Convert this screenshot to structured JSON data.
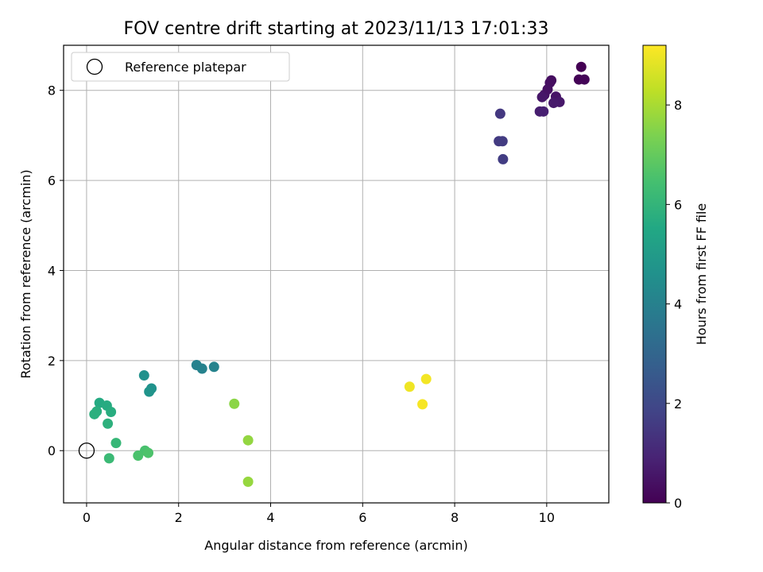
{
  "chart_data": {
    "type": "scatter",
    "title": "FOV centre drift starting at 2023/11/13 17:01:33",
    "xlabel": "Angular distance from reference (arcmin)",
    "ylabel": "Rotation from reference (arcmin)",
    "xlim": [
      -0.5,
      11.35
    ],
    "ylim": [
      -1.16,
      9.0
    ],
    "xticks": [
      0,
      2,
      4,
      6,
      8,
      10
    ],
    "yticks": [
      0,
      2,
      4,
      6,
      8
    ],
    "grid": true,
    "legend": {
      "position": "top-left",
      "entries": [
        "Reference platepar"
      ]
    },
    "reference_point": {
      "x": 0,
      "y": 0
    },
    "colorbar": {
      "label": "Hours from first FF file",
      "range": [
        0,
        9.2
      ],
      "ticks": [
        0,
        2,
        4,
        6,
        8
      ],
      "colormap": "viridis"
    },
    "points": [
      {
        "x": 10.75,
        "y": 8.52,
        "c": 0.0
      },
      {
        "x": 10.7,
        "y": 8.24,
        "c": 0.05
      },
      {
        "x": 10.82,
        "y": 8.24,
        "c": 0.1
      },
      {
        "x": 10.1,
        "y": 8.22,
        "c": 0.3
      },
      {
        "x": 10.07,
        "y": 8.17,
        "c": 0.35
      },
      {
        "x": 10.02,
        "y": 8.02,
        "c": 0.4
      },
      {
        "x": 9.95,
        "y": 7.9,
        "c": 0.45
      },
      {
        "x": 10.2,
        "y": 7.86,
        "c": 0.5
      },
      {
        "x": 9.9,
        "y": 7.85,
        "c": 0.55
      },
      {
        "x": 10.28,
        "y": 7.74,
        "c": 0.6
      },
      {
        "x": 10.15,
        "y": 7.72,
        "c": 0.65
      },
      {
        "x": 9.85,
        "y": 7.53,
        "c": 0.75
      },
      {
        "x": 9.93,
        "y": 7.53,
        "c": 0.8
      },
      {
        "x": 8.99,
        "y": 7.48,
        "c": 1.5
      },
      {
        "x": 8.96,
        "y": 6.87,
        "c": 1.55
      },
      {
        "x": 9.04,
        "y": 6.87,
        "c": 1.6
      },
      {
        "x": 9.05,
        "y": 6.47,
        "c": 1.65
      },
      {
        "x": 2.39,
        "y": 1.9,
        "c": 4.0
      },
      {
        "x": 2.51,
        "y": 1.82,
        "c": 4.05
      },
      {
        "x": 2.77,
        "y": 1.86,
        "c": 4.1
      },
      {
        "x": 1.25,
        "y": 1.67,
        "c": 4.6
      },
      {
        "x": 1.41,
        "y": 1.38,
        "c": 4.65
      },
      {
        "x": 1.36,
        "y": 1.31,
        "c": 4.7
      },
      {
        "x": 0.28,
        "y": 1.06,
        "c": 5.6
      },
      {
        "x": 0.44,
        "y": 1.0,
        "c": 5.65
      },
      {
        "x": 0.53,
        "y": 0.86,
        "c": 5.7
      },
      {
        "x": 0.22,
        "y": 0.87,
        "c": 5.75
      },
      {
        "x": 0.17,
        "y": 0.81,
        "c": 5.8
      },
      {
        "x": 0.46,
        "y": 0.6,
        "c": 5.85
      },
      {
        "x": 0.64,
        "y": 0.17,
        "c": 6.1
      },
      {
        "x": 0.49,
        "y": -0.17,
        "c": 6.2
      },
      {
        "x": 1.27,
        "y": 0.0,
        "c": 6.5
      },
      {
        "x": 1.12,
        "y": -0.11,
        "c": 6.55
      },
      {
        "x": 1.34,
        "y": -0.05,
        "c": 6.6
      },
      {
        "x": 3.21,
        "y": 1.04,
        "c": 7.6
      },
      {
        "x": 3.51,
        "y": 0.23,
        "c": 7.7
      },
      {
        "x": 3.51,
        "y": -0.69,
        "c": 7.75
      },
      {
        "x": 7.02,
        "y": 1.42,
        "c": 9.0
      },
      {
        "x": 7.38,
        "y": 1.59,
        "c": 9.05
      },
      {
        "x": 7.3,
        "y": 1.03,
        "c": 9.1
      }
    ]
  }
}
